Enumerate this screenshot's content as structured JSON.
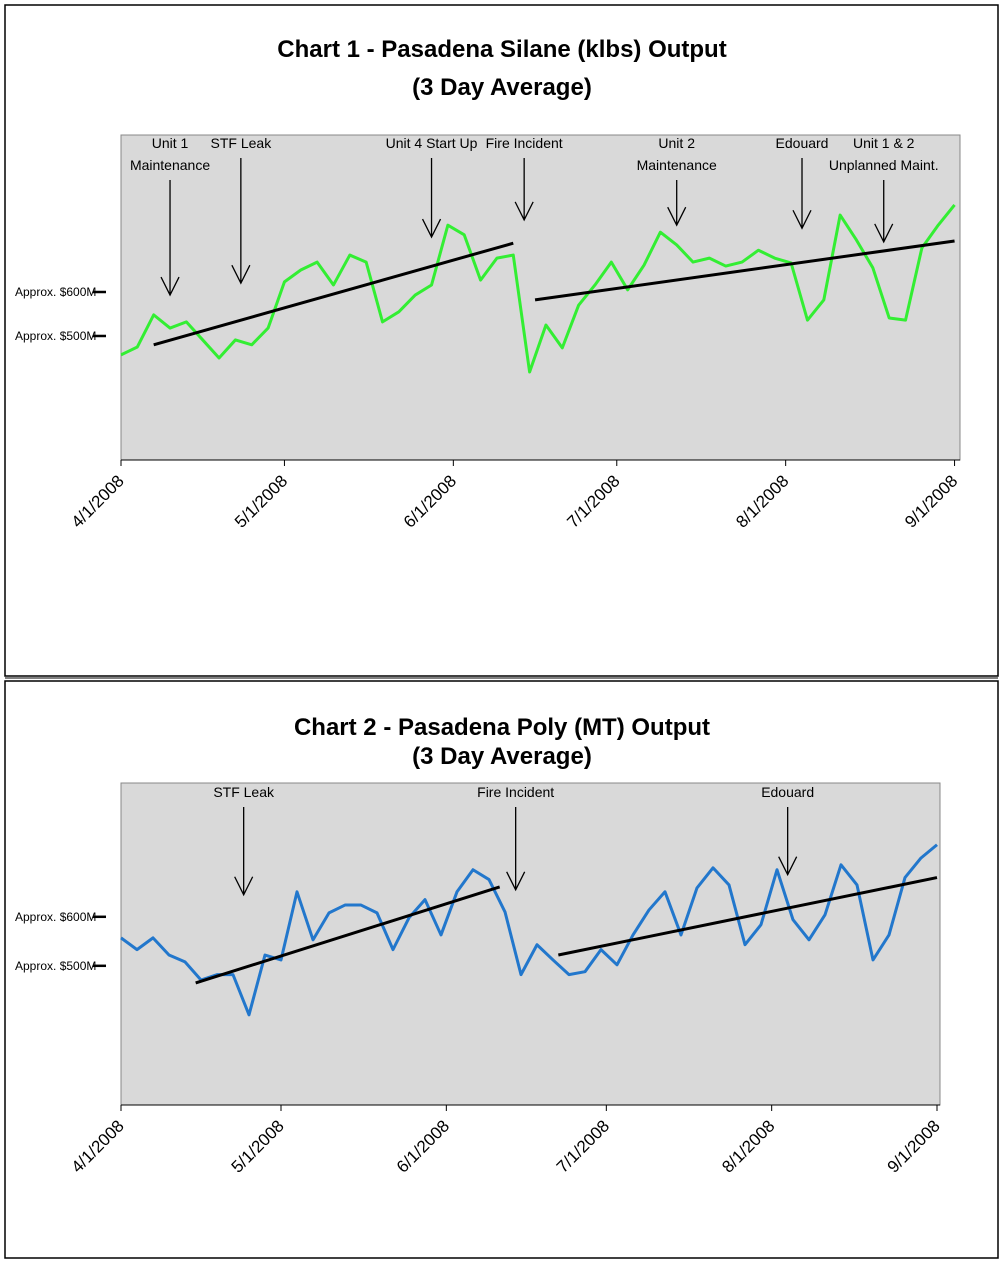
{
  "chart_data": [
    {
      "type": "line",
      "title": [
        "Chart 1 - Pasadena Silane (klbs) Output",
        "(3 Day Average)"
      ],
      "color": "#33ee33",
      "xlim": [
        "4/1/2008",
        "9/2/2008"
      ],
      "xticks": [
        "4/1/2008",
        "5/1/2008",
        "6/1/2008",
        "7/1/2008",
        "8/1/2008",
        "9/1/2008"
      ],
      "ylim": [
        218,
        957
      ],
      "yticks": [
        {
          "value": 500,
          "label": "Approx. $500M"
        },
        {
          "value": 600,
          "label": "Approx. $600M"
        }
      ],
      "x": [
        "4/1/2008",
        "4/4/2008",
        "4/7/2008",
        "4/10/2008",
        "4/13/2008",
        "4/16/2008",
        "4/19/2008",
        "4/22/2008",
        "4/25/2008",
        "4/28/2008",
        "5/1/2008",
        "5/4/2008",
        "5/7/2008",
        "5/10/2008",
        "5/13/2008",
        "5/16/2008",
        "5/19/2008",
        "5/22/2008",
        "5/25/2008",
        "5/28/2008",
        "5/31/2008",
        "6/3/2008",
        "6/6/2008",
        "6/9/2008",
        "6/12/2008",
        "6/15/2008",
        "6/18/2008",
        "6/21/2008",
        "6/24/2008",
        "6/27/2008",
        "6/30/2008",
        "7/3/2008",
        "7/6/2008",
        "7/9/2008",
        "7/12/2008",
        "7/15/2008",
        "7/18/2008",
        "7/21/2008",
        "7/24/2008",
        "7/27/2008",
        "7/30/2008",
        "8/2/2008",
        "8/5/2008",
        "8/8/2008",
        "8/11/2008",
        "8/14/2008",
        "8/17/2008",
        "8/20/2008",
        "8/23/2008",
        "8/26/2008",
        "8/29/2008",
        "9/1/2008"
      ],
      "values": [
        457,
        475,
        548,
        518,
        532,
        491,
        450,
        491,
        480,
        518,
        623,
        650,
        668,
        616,
        684,
        668,
        532,
        555,
        593,
        616,
        752,
        730,
        627,
        677,
        684,
        418,
        525,
        473,
        570,
        616,
        668,
        605,
        661,
        736,
        707,
        668,
        677,
        659,
        668,
        695,
        677,
        666,
        536,
        582,
        775,
        718,
        655,
        541,
        536,
        700,
        752,
        798
      ],
      "trendlines": [
        {
          "x": [
            "4/7/2008",
            "6/12/2008"
          ],
          "values": [
            480,
            711
          ]
        },
        {
          "x": [
            "6/16/2008",
            "9/1/2008"
          ],
          "values": [
            582,
            716
          ]
        }
      ],
      "trendline_color": "#000000",
      "annotations": [
        {
          "x": "4/10/2008",
          "y": 593,
          "text": [
            "Unit 1",
            "Maintenance"
          ]
        },
        {
          "x": "4/23/2008",
          "y": 620,
          "text": [
            "STF Leak"
          ]
        },
        {
          "x": "5/28/2008",
          "y": 725,
          "text": [
            "Unit 4 Start Up"
          ]
        },
        {
          "x": "6/14/2008",
          "y": 764,
          "text": [
            "Fire Incident"
          ]
        },
        {
          "x": "7/12/2008",
          "y": 752,
          "text": [
            "Unit 2",
            "Maintenance"
          ]
        },
        {
          "x": "8/4/2008",
          "y": 745,
          "text": [
            "Edouard"
          ]
        },
        {
          "x": "8/19/2008",
          "y": 714,
          "text": [
            "Unit 1 & 2",
            "Unplanned Maint."
          ]
        }
      ]
    },
    {
      "type": "line",
      "title": [
        "Chart 2 - Pasadena Poly (MT) Output",
        "(3 Day Average)"
      ],
      "color": "#2277cc",
      "xlim": [
        "4/1/2008",
        "9/1/2008"
      ],
      "xticks": [
        "4/1/2008",
        "5/1/2008",
        "6/1/2008",
        "7/1/2008",
        "8/1/2008",
        "9/1/2008"
      ],
      "ylim": [
        216,
        873
      ],
      "yticks": [
        {
          "value": 500,
          "label": "Approx. $500M"
        },
        {
          "value": 600,
          "label": "Approx. $600M"
        }
      ],
      "x": [
        "4/1/2008",
        "4/4/2008",
        "4/7/2008",
        "4/10/2008",
        "4/13/2008",
        "4/16/2008",
        "4/19/2008",
        "4/22/2008",
        "4/25/2008",
        "4/28/2008",
        "5/1/2008",
        "5/4/2008",
        "5/7/2008",
        "5/10/2008",
        "5/13/2008",
        "5/16/2008",
        "5/19/2008",
        "5/22/2008",
        "5/25/2008",
        "5/28/2008",
        "5/31/2008",
        "6/3/2008",
        "6/6/2008",
        "6/9/2008",
        "6/12/2008",
        "6/15/2008",
        "6/18/2008",
        "6/21/2008",
        "6/24/2008",
        "6/27/2008",
        "6/30/2008",
        "7/3/2008",
        "7/6/2008",
        "7/9/2008",
        "7/12/2008",
        "7/15/2008",
        "7/18/2008",
        "7/21/2008",
        "7/24/2008",
        "7/27/2008",
        "7/30/2008",
        "8/2/2008",
        "8/5/2008",
        "8/8/2008",
        "8/11/2008",
        "8/14/2008",
        "8/17/2008",
        "8/20/2008",
        "8/23/2008",
        "8/26/2008",
        "8/29/2008",
        "9/1/2008"
      ],
      "values": [
        557,
        533,
        557,
        522,
        508,
        471,
        482,
        482,
        400,
        522,
        512,
        651,
        553,
        608,
        624,
        624,
        608,
        533,
        598,
        635,
        563,
        651,
        696,
        676,
        610,
        482,
        543,
        512,
        482,
        488,
        533,
        502,
        563,
        614,
        651,
        563,
        659,
        700,
        665,
        543,
        584,
        696,
        594,
        553,
        604,
        706,
        665,
        512,
        563,
        680,
        720,
        747
      ],
      "trendlines": [
        {
          "x": [
            "4/15/2008",
            "6/11/2008"
          ],
          "values": [
            465,
            661
          ]
        },
        {
          "x": [
            "6/22/2008",
            "9/1/2008"
          ],
          "values": [
            522,
            680
          ]
        }
      ],
      "trendline_color": "#000000",
      "annotations": [
        {
          "x": "4/24/2008",
          "y": 645,
          "text": [
            "STF Leak"
          ]
        },
        {
          "x": "6/14/2008",
          "y": 655,
          "text": [
            "Fire Incident"
          ]
        },
        {
          "x": "8/4/2008",
          "y": 686,
          "text": [
            "Edouard"
          ]
        }
      ]
    }
  ]
}
